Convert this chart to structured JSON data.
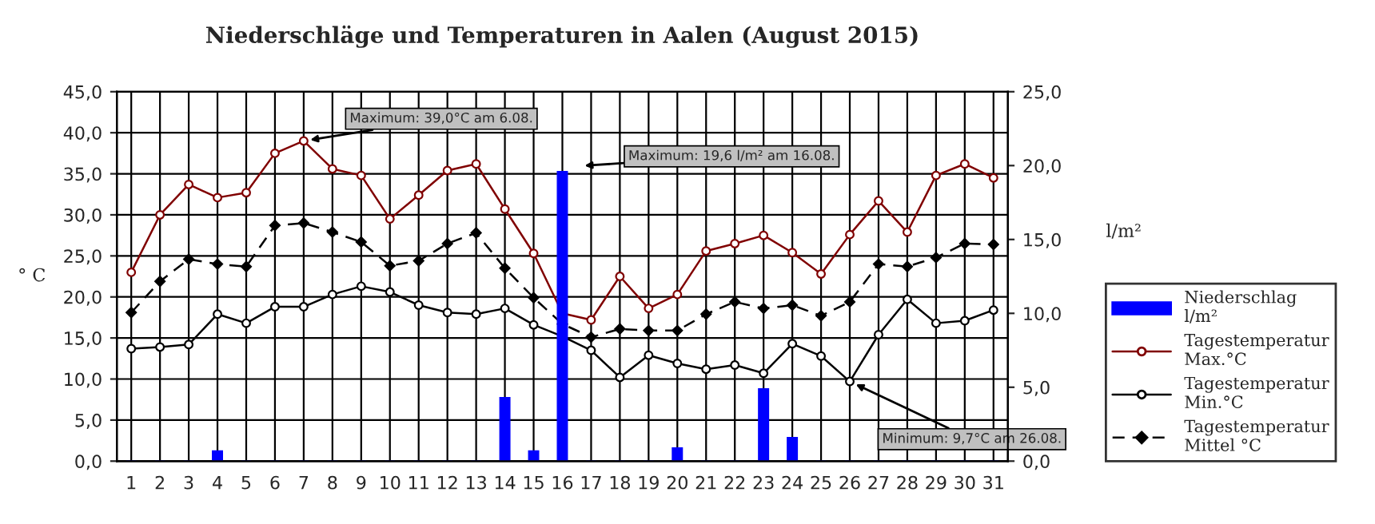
{
  "chart_data": {
    "type": "line",
    "title": "Niederschläge und Temperaturen in Aalen (August 2015)",
    "categories": [
      "1",
      "2",
      "3",
      "4",
      "5",
      "6",
      "7",
      "8",
      "9",
      "10",
      "11",
      "12",
      "13",
      "14",
      "15",
      "16",
      "17",
      "18",
      "19",
      "20",
      "21",
      "22",
      "23",
      "24",
      "25",
      "26",
      "27",
      "28",
      "29",
      "30",
      "31"
    ],
    "series": [
      {
        "name": "Niederschlag\nl/m²",
        "type": "bar",
        "axis": "y2",
        "color": "#0000ff",
        "values": [
          0,
          0,
          0,
          0.7,
          0,
          0,
          0,
          0,
          0,
          0,
          0,
          0,
          0,
          4.3,
          0.7,
          19.6,
          0,
          0,
          0,
          0.9,
          0,
          0,
          4.9,
          1.6,
          0,
          0,
          0,
          0,
          0,
          0,
          0
        ]
      },
      {
        "name": "Tagestemperatur\nMax.°C",
        "color": "#800000",
        "marker": "circle",
        "line_style": "solid",
        "values": [
          23.0,
          30.0,
          33.7,
          32.1,
          32.7,
          37.5,
          39.0,
          35.6,
          34.8,
          29.5,
          32.4,
          35.4,
          36.2,
          30.7,
          25.3,
          18.0,
          17.2,
          22.5,
          18.6,
          20.3,
          25.6,
          26.5,
          27.5,
          25.4,
          22.8,
          27.6,
          31.7,
          27.9,
          34.8,
          36.2,
          34.5
        ]
      },
      {
        "name": "Tagestemperatur\nMin.°C",
        "color": "#000000",
        "marker": "circle",
        "line_style": "solid",
        "values": [
          13.7,
          13.9,
          14.2,
          17.9,
          16.8,
          18.8,
          18.8,
          20.3,
          21.3,
          20.6,
          19.0,
          18.1,
          17.9,
          18.6,
          16.6,
          15.2,
          13.5,
          10.2,
          12.9,
          11.9,
          11.2,
          11.7,
          10.7,
          14.3,
          12.8,
          9.7,
          15.4,
          19.7,
          16.8,
          17.1,
          18.4
        ]
      },
      {
        "name": "Tagestemperatur\nMittel °C",
        "color": "#000000",
        "marker": "diamond",
        "line_style": "dashed",
        "values": [
          18.1,
          21.9,
          24.6,
          24.0,
          23.7,
          28.7,
          29.0,
          27.9,
          26.7,
          23.8,
          24.4,
          26.5,
          27.8,
          23.5,
          19.9,
          16.7,
          15.1,
          16.1,
          15.9,
          15.9,
          17.9,
          19.4,
          18.6,
          19.0,
          17.7,
          19.4,
          24.0,
          23.7,
          24.8,
          26.5,
          26.4
        ]
      }
    ],
    "ylabel": "° C",
    "y2label": "l/m²",
    "ylim": [
      0,
      45
    ],
    "yticks": [
      {
        "value": 0,
        "label": "0,0"
      },
      {
        "value": 5,
        "label": "5,0"
      },
      {
        "value": 10,
        "label": "10,0"
      },
      {
        "value": 15,
        "label": "15,0"
      },
      {
        "value": 20,
        "label": "20,0"
      },
      {
        "value": 25,
        "label": "25,0"
      },
      {
        "value": 30,
        "label": "30,0"
      },
      {
        "value": 35,
        "label": "35,0"
      },
      {
        "value": 40,
        "label": "40,0"
      },
      {
        "value": 45,
        "label": "45,0"
      }
    ],
    "y2lim": [
      0,
      25
    ],
    "y2ticks": [
      {
        "value": 0,
        "label": "0,0"
      },
      {
        "value": 5,
        "label": "5,0"
      },
      {
        "value": 10,
        "label": "10,0"
      },
      {
        "value": 15,
        "label": "15,0"
      },
      {
        "value": 20,
        "label": "20,0"
      },
      {
        "value": 25,
        "label": "25,0"
      }
    ],
    "annotations": [
      {
        "text": "Maximum: 39,0°C am 6.08.",
        "x": "7",
        "y": 39.0
      },
      "Maximum: 19,6 l/m² am 16.08.",
      {
        "text": "Minimum: 9,7°C am 26.08.",
        "x": "26",
        "y": 9.7
      }
    ],
    "grid": true,
    "legend": "right"
  }
}
